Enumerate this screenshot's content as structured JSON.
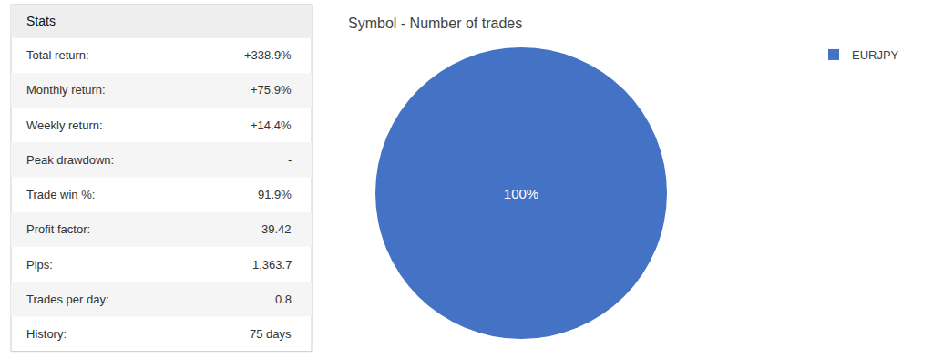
{
  "chart_data": {
    "type": "pie",
    "title": "Symbol - Number of trades",
    "categories": [
      "EURJPY"
    ],
    "values": [
      100
    ],
    "value_labels": [
      "100%"
    ],
    "colors": [
      "#4472c4"
    ],
    "data_labels": true,
    "legend": "upper right",
    "annotations": [
      "Stats",
      "Total return:",
      "+338.9%",
      "Monthly return:",
      "+75.9%",
      "Weekly return:",
      "+14.4%",
      "Peak drawdown:",
      "-",
      "Trade win %:",
      "91.9%",
      "Profit factor:",
      "39.42",
      "Pips:",
      "1,363.7",
      "Trades per day:",
      "0.8",
      "History:",
      "75 days"
    ]
  }
}
